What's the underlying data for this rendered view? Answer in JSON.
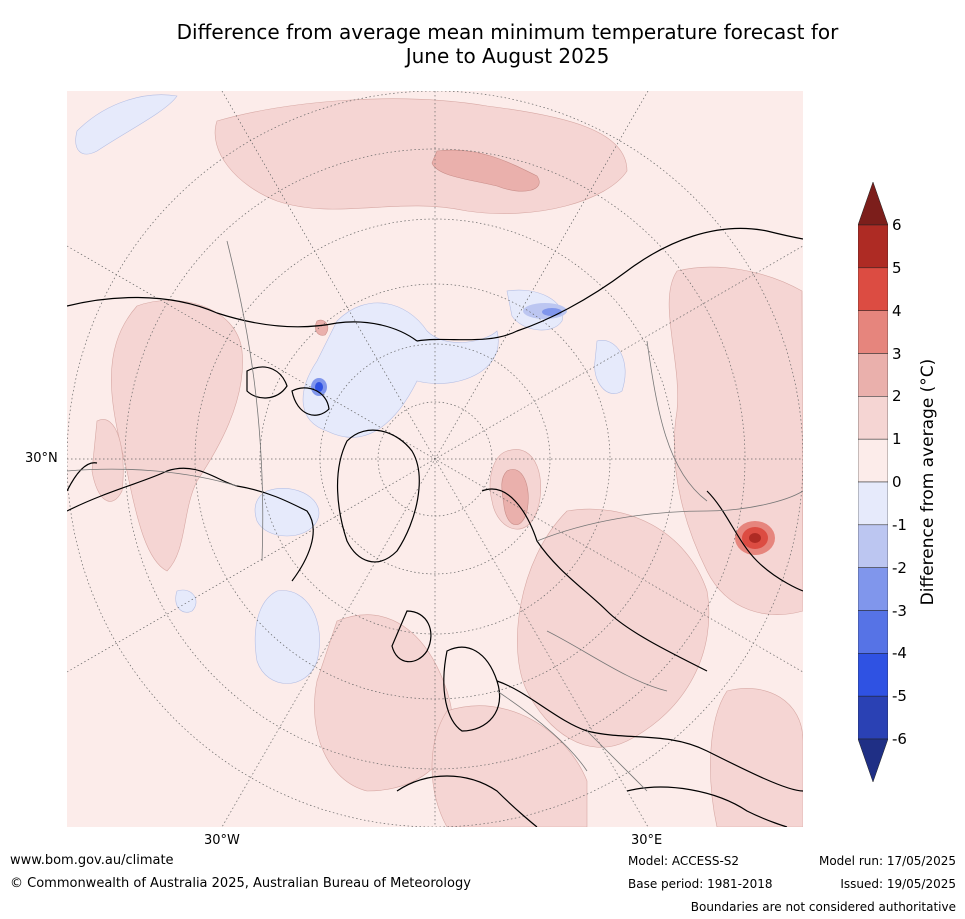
{
  "title": "Difference from average mean minimum temperature forecast for\nJune to August 2025",
  "map": {
    "projection": "north-polar-stereographic",
    "lat_label": "30°N",
    "lon_labels": [
      "30°W",
      "30°E"
    ]
  },
  "colorbar": {
    "label": "Difference from average (°C)",
    "ticks": [
      "6",
      "5",
      "4",
      "3",
      "2",
      "1",
      "0",
      "-1",
      "-2",
      "-3",
      "-4",
      "-5",
      "-6"
    ],
    "bins": [
      {
        "range": "<-6",
        "color": "#1f2f85"
      },
      {
        "range": "-6 to -5",
        "color": "#2a41b4"
      },
      {
        "range": "-5 to -4",
        "color": "#2f52e3"
      },
      {
        "range": "-4 to -3",
        "color": "#5673e6"
      },
      {
        "range": "-3 to -2",
        "color": "#8096ec"
      },
      {
        "range": "-2 to -1",
        "color": "#bcc6f1"
      },
      {
        "range": "-1 to 0",
        "color": "#e6eafb"
      },
      {
        "range": "0 to 1",
        "color": "#fcecea"
      },
      {
        "range": "1 to 2",
        "color": "#f5d5d3"
      },
      {
        "range": "2 to 3",
        "color": "#eab0ac"
      },
      {
        "range": "3 to 4",
        "color": "#e6857d"
      },
      {
        "range": "4 to 5",
        "color": "#dc4c42"
      },
      {
        "range": "5 to 6",
        "color": "#ae2b24"
      },
      {
        "range": ">6",
        "color": "#7c1e1b"
      }
    ]
  },
  "footer": {
    "website": "www.bom.gov.au/climate",
    "copyright": "© Commonwealth of Australia 2025, Australian Bureau of Meteorology",
    "model": "Model: ACCESS-S2",
    "base_period": "Base period: 1981-2018",
    "model_run": "Model run: 17/05/2025",
    "issued": "Issued: 19/05/2025",
    "disclaimer": "Boundaries are not considered authoritative"
  }
}
